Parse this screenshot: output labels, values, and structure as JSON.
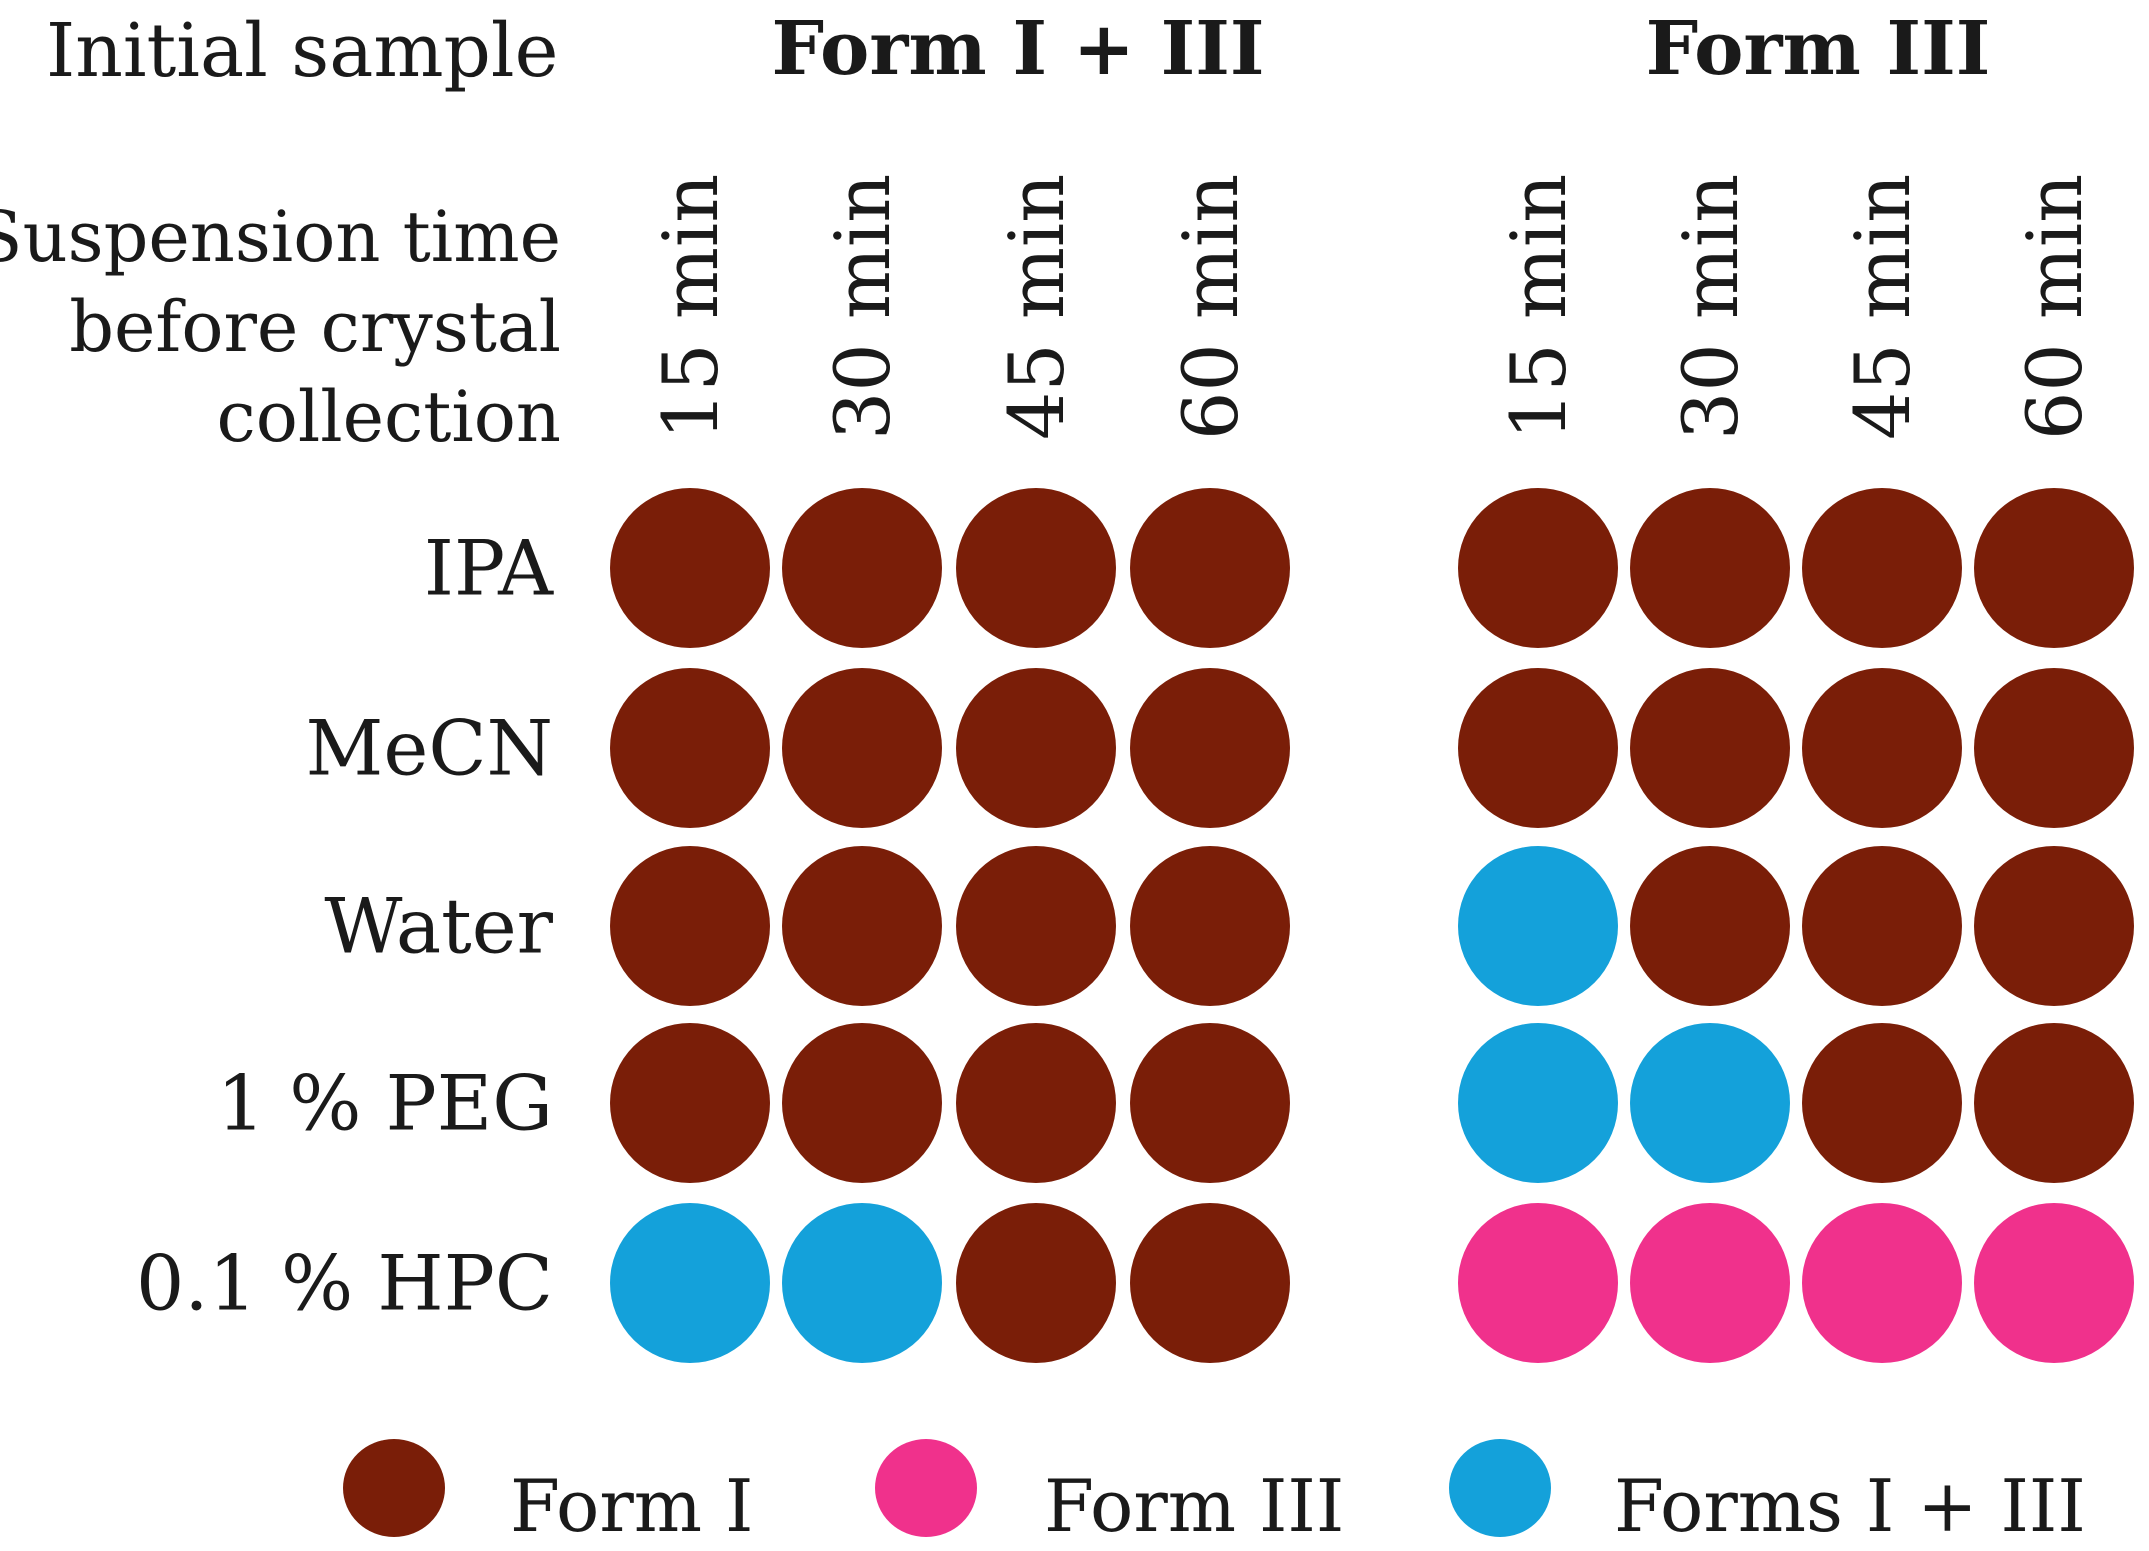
{
  "header": {
    "initial_sample_label": "Initial sample",
    "groups": [
      "Form I + III",
      "Form III"
    ]
  },
  "suspension_label": [
    "Suspension time",
    "before crystal",
    "collection"
  ],
  "times": [
    "15 min",
    "30 min",
    "45 min",
    "60 min"
  ],
  "rows": [
    "IPA",
    "MeCN",
    "Water",
    "1 % PEG",
    "0.1 % HPC"
  ],
  "colors": {
    "form_i": "#7a1e08",
    "form_iii": "#f0318c",
    "forms_i_iii": "#14a1da"
  },
  "legend": [
    {
      "label": "Form I",
      "key": "form_i"
    },
    {
      "label": "Form III",
      "key": "form_iii"
    },
    {
      "label": "Forms I + III",
      "key": "forms_i_iii"
    }
  ],
  "grid": {
    "Form I + III": [
      [
        "form_i",
        "form_i",
        "form_i",
        "form_i"
      ],
      [
        "form_i",
        "form_i",
        "form_i",
        "form_i"
      ],
      [
        "form_i",
        "form_i",
        "form_i",
        "form_i"
      ],
      [
        "form_i",
        "form_i",
        "form_i",
        "form_i"
      ],
      [
        "forms_i_iii",
        "forms_i_iii",
        "form_i",
        "form_i"
      ]
    ],
    "Form III": [
      [
        "form_i",
        "form_i",
        "form_i",
        "form_i"
      ],
      [
        "form_i",
        "form_i",
        "form_i",
        "form_i"
      ],
      [
        "forms_i_iii",
        "form_i",
        "form_i",
        "form_i"
      ],
      [
        "forms_i_iii",
        "forms_i_iii",
        "form_i",
        "form_i"
      ],
      [
        "form_iii",
        "form_iii",
        "form_iii",
        "form_iii"
      ]
    ]
  }
}
